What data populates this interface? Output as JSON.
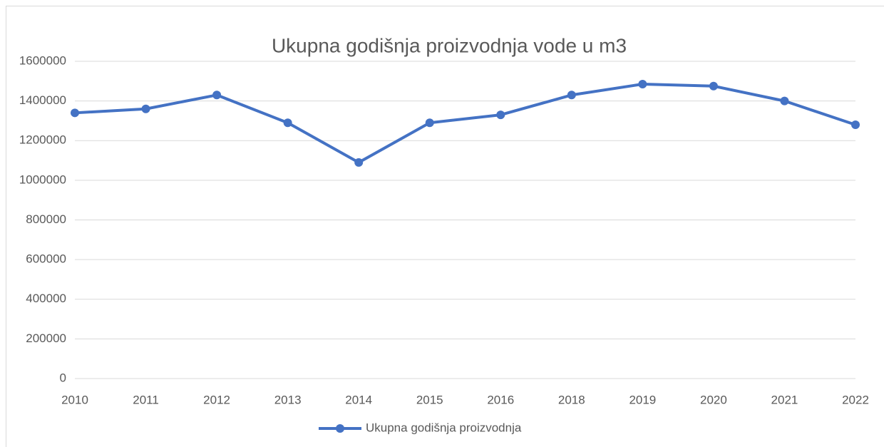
{
  "chart_data": {
    "type": "line",
    "title": "Ukupna godišnja proizvodnja vode u m3",
    "categories": [
      "2010",
      "2011",
      "2012",
      "2013",
      "2014",
      "2015",
      "2016",
      "2018",
      "2019",
      "2020",
      "2021",
      "2022"
    ],
    "series": [
      {
        "name": "Ukupna godišnja proizvodnja",
        "color": "#4472c4",
        "values": [
          1340000,
          1360000,
          1430000,
          1290000,
          1090000,
          1290000,
          1330000,
          1430000,
          1485000,
          1475000,
          1400000,
          1280000
        ]
      }
    ],
    "ylim": [
      0,
      1600000
    ],
    "yticks": [
      0,
      200000,
      400000,
      600000,
      800000,
      1000000,
      1200000,
      1400000,
      1600000
    ],
    "grid": true,
    "legend": "bottom"
  }
}
